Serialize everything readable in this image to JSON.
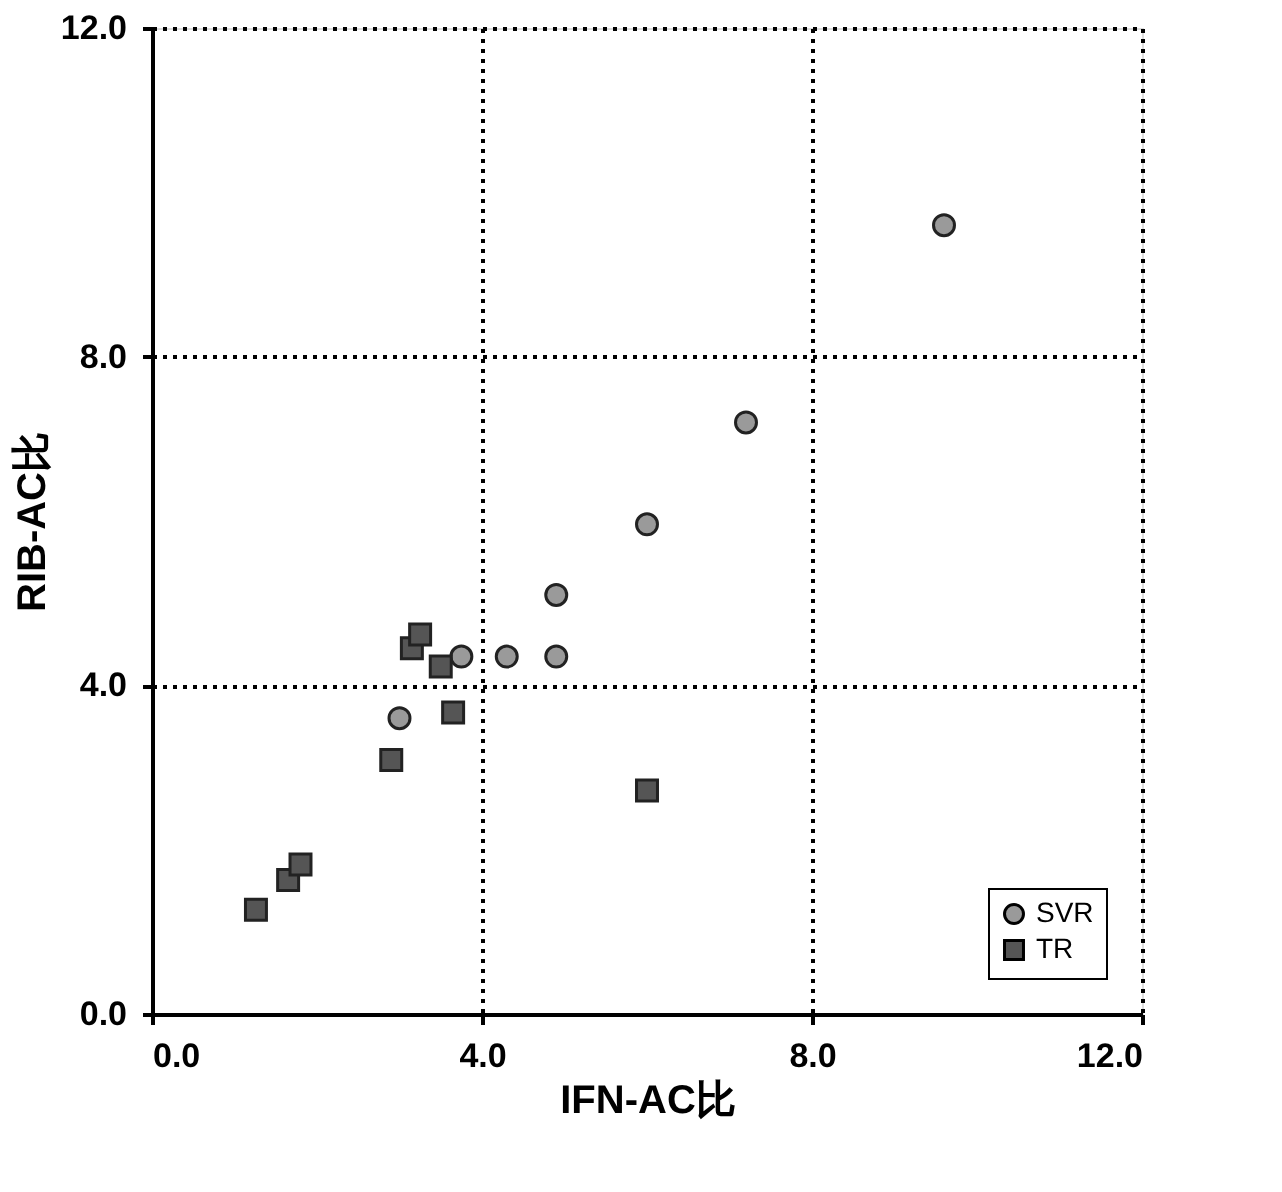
{
  "chart_data": {
    "type": "scatter",
    "xlabel": "IFN-AC比",
    "ylabel": "RIB-AC比",
    "xlim": [
      0,
      12
    ],
    "ylim": [
      0,
      12
    ],
    "xticks": [
      {
        "value": 0,
        "label": "0.0"
      },
      {
        "value": 4,
        "label": "4.0"
      },
      {
        "value": 8,
        "label": "8.0"
      },
      {
        "value": 12,
        "label": "12.0"
      }
    ],
    "yticks": [
      {
        "value": 0,
        "label": "0.0"
      },
      {
        "value": 4,
        "label": "4.0"
      },
      {
        "value": 8,
        "label": "8.0"
      },
      {
        "value": 12,
        "label": "12.0"
      }
    ],
    "grid": true,
    "legend": "bottom right",
    "series": [
      {
        "name": "SVR",
        "color": "#9a9a9a",
        "marker": "circle",
        "x": [
          3.0,
          3.75,
          4.3,
          4.9,
          4.9,
          6.0,
          7.2,
          9.6
        ],
        "values": [
          3.6,
          4.35,
          4.35,
          4.35,
          5.1,
          5.96,
          7.2,
          9.6
        ]
      },
      {
        "name": "TR",
        "color": "#555555",
        "marker": "square",
        "x": [
          1.26,
          1.65,
          1.8,
          2.9,
          3.15,
          3.25,
          3.5,
          3.65,
          6.0
        ],
        "values": [
          1.27,
          1.63,
          1.82,
          3.09,
          4.45,
          4.62,
          4.23,
          3.67,
          2.72
        ]
      }
    ]
  }
}
